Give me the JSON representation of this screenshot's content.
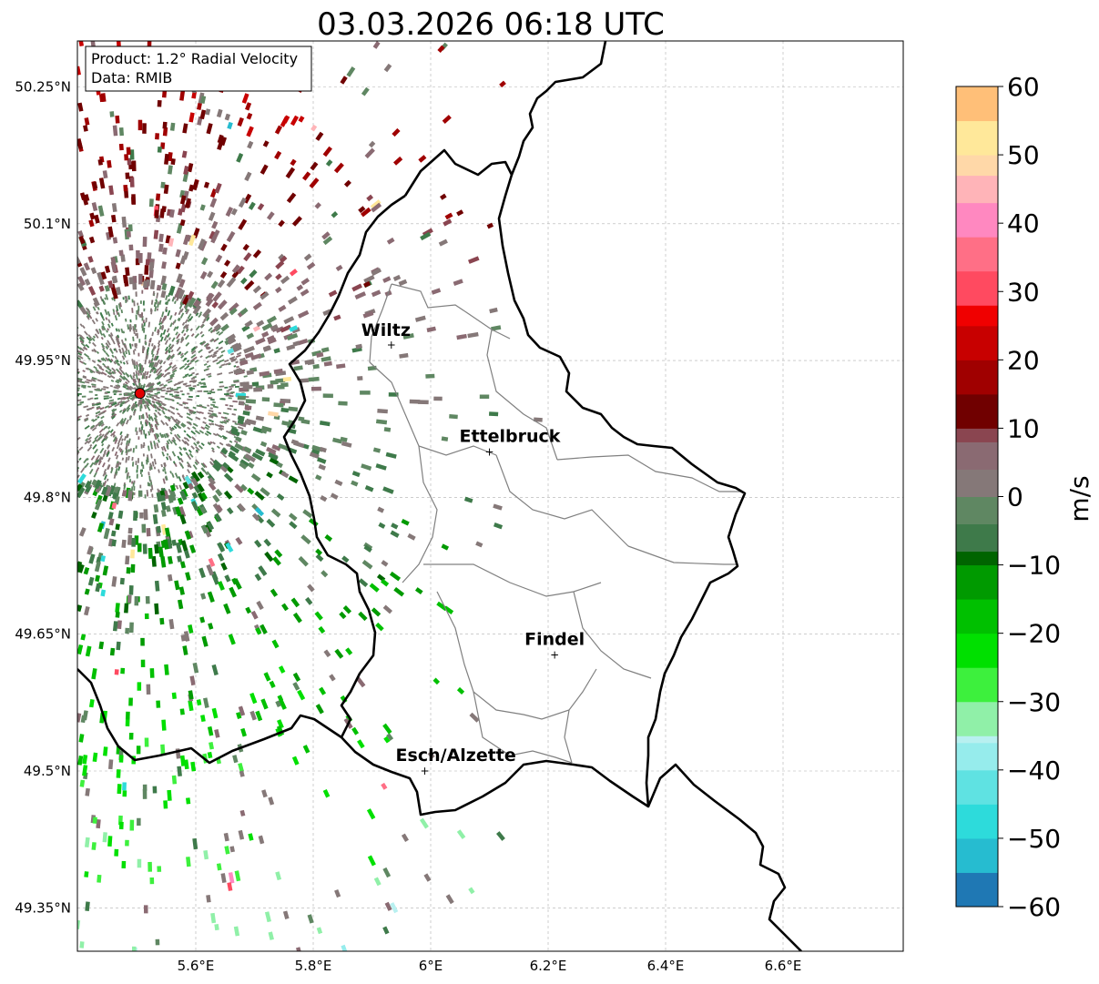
{
  "title": "03.03.2026 06:18 UTC",
  "info_box": {
    "product": "Product: 1.2° Radial Velocity",
    "source": "Data: RMIB"
  },
  "axes": {
    "lon_range": [
      5.4,
      6.8
    ],
    "lat_range": [
      49.3,
      50.3
    ],
    "lon_ticks": [
      {
        "value": 5.6,
        "label": "5.6°E"
      },
      {
        "value": 5.8,
        "label": "5.8°E"
      },
      {
        "value": 6.0,
        "label": "6°E"
      },
      {
        "value": 6.2,
        "label": "6.2°E"
      },
      {
        "value": 6.4,
        "label": "6.4°E"
      },
      {
        "value": 6.6,
        "label": "6.6°E"
      }
    ],
    "lat_ticks": [
      {
        "value": 50.25,
        "label": "50.25°N"
      },
      {
        "value": 50.1,
        "label": "50.1°N"
      },
      {
        "value": 49.95,
        "label": "49.95°N"
      },
      {
        "value": 49.8,
        "label": "49.8°N"
      },
      {
        "value": 49.65,
        "label": "49.65°N"
      },
      {
        "value": 49.5,
        "label": "49.5°N"
      },
      {
        "value": 49.35,
        "label": "49.35°N"
      }
    ]
  },
  "cities": [
    {
      "name": "Wiltz",
      "lon": 5.933,
      "lat": 49.967
    },
    {
      "name": "Ettelbruck",
      "lon": 6.1,
      "lat": 49.85
    },
    {
      "name": "Findel",
      "lon": 6.211,
      "lat": 49.627
    },
    {
      "name": "Esch/Alzette",
      "lon": 5.99,
      "lat": 49.5
    }
  ],
  "radar_site": {
    "lon": 5.505,
    "lat": 49.914,
    "color": "#e00000"
  },
  "colorbar": {
    "label": "m/s",
    "min": -60,
    "max": 60,
    "ticks": [
      {
        "value": 60,
        "label": "60"
      },
      {
        "value": 50,
        "label": "50"
      },
      {
        "value": 40,
        "label": "40"
      },
      {
        "value": 30,
        "label": "30"
      },
      {
        "value": 20,
        "label": "20"
      },
      {
        "value": 10,
        "label": "10"
      },
      {
        "value": 0,
        "label": "0"
      },
      {
        "value": -10,
        "label": "−10"
      },
      {
        "value": -20,
        "label": "−20"
      },
      {
        "value": -30,
        "label": "−30"
      },
      {
        "value": -40,
        "label": "−40"
      },
      {
        "value": -50,
        "label": "−50"
      },
      {
        "value": -60,
        "label": "−60"
      }
    ],
    "stops": [
      {
        "value": -60,
        "color": "#1f78b4"
      },
      {
        "value": -55,
        "color": "#26bcd0"
      },
      {
        "value": -50,
        "color": "#2ddbdb"
      },
      {
        "value": -45,
        "color": "#5fe2e2"
      },
      {
        "value": -40,
        "color": "#96ecec"
      },
      {
        "value": -36,
        "color": "#b8f0f0"
      },
      {
        "value": -35,
        "color": "#90f0a8"
      },
      {
        "value": -30,
        "color": "#3df03d"
      },
      {
        "value": -25,
        "color": "#00e000"
      },
      {
        "value": -20,
        "color": "#00c000"
      },
      {
        "value": -15,
        "color": "#009a00"
      },
      {
        "value": -10,
        "color": "#006400"
      },
      {
        "value": -8,
        "color": "#3e7a4a"
      },
      {
        "value": -4,
        "color": "#5f8762"
      },
      {
        "value": 0,
        "color": "#857878"
      },
      {
        "value": 4,
        "color": "#8a6a72"
      },
      {
        "value": 8,
        "color": "#8a4550"
      },
      {
        "value": 10,
        "color": "#700000"
      },
      {
        "value": 15,
        "color": "#a00000"
      },
      {
        "value": 20,
        "color": "#c80000"
      },
      {
        "value": 25,
        "color": "#f00000"
      },
      {
        "value": 28,
        "color": "#ff4a60"
      },
      {
        "value": 33,
        "color": "#ff6f86"
      },
      {
        "value": 38,
        "color": "#ff88c0"
      },
      {
        "value": 43,
        "color": "#ffb4b8"
      },
      {
        "value": 47,
        "color": "#ffd8a8"
      },
      {
        "value": 50,
        "color": "#ffe89a"
      },
      {
        "value": 55,
        "color": "#ffbf78"
      },
      {
        "value": 60,
        "color": "#ff9a50"
      }
    ]
  }
}
